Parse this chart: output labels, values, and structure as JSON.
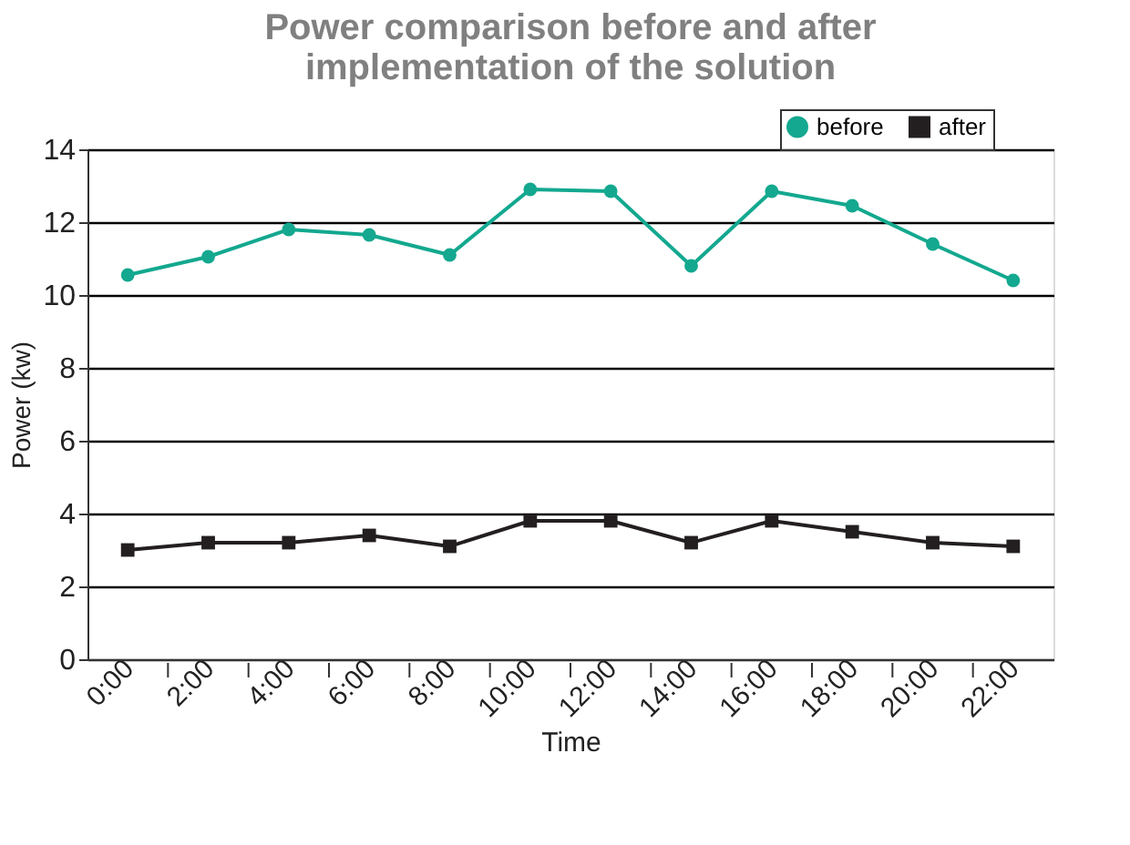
{
  "chart_data": {
    "type": "line",
    "title": [
      "Power comparison before and after",
      "implementation of the solution"
    ],
    "xlabel": "Time",
    "ylabel": "Power (kw)",
    "categories": [
      "0:00",
      "2:00",
      "4:00",
      "6:00",
      "8:00",
      "10:00",
      "12:00",
      "14:00",
      "16:00",
      "18:00",
      "20:00",
      "22:00"
    ],
    "series": [
      {
        "name": "before",
        "color": "#13a88f",
        "marker": "circle",
        "values": [
          10.55,
          11.05,
          11.8,
          11.65,
          11.1,
          12.9,
          12.85,
          10.8,
          12.85,
          12.45,
          11.4,
          10.4
        ]
      },
      {
        "name": "after",
        "color": "#231f20",
        "marker": "square",
        "values": [
          3.0,
          3.2,
          3.2,
          3.4,
          3.1,
          3.8,
          3.8,
          3.2,
          3.8,
          3.5,
          3.2,
          3.1
        ]
      }
    ],
    "ylim": [
      0,
      14
    ],
    "yticks": [
      0,
      2,
      4,
      6,
      8,
      10,
      12,
      14
    ],
    "grid": "y",
    "legend": "top right",
    "line_style": "solid"
  }
}
